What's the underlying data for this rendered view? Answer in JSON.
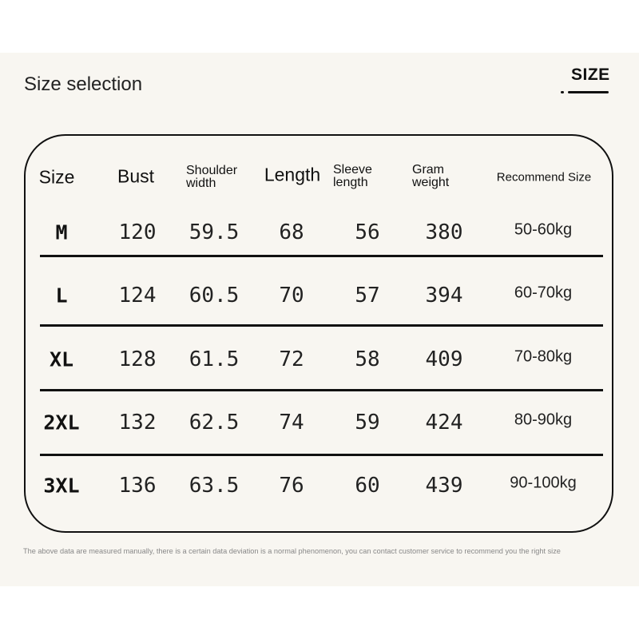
{
  "title": "Size selection",
  "logo": "SIZE",
  "headers": [
    "Size",
    "Bust",
    "Shoulder width",
    "Length",
    "Sleeve length",
    "Gram weight",
    "Recommend Size"
  ],
  "rows": [
    {
      "size": "M",
      "bust": "120",
      "shoulder": "59.5",
      "length": "68",
      "sleeve": "56",
      "weight": "380",
      "recommend": "50-60kg"
    },
    {
      "size": "L",
      "bust": "124",
      "shoulder": "60.5",
      "length": "70",
      "sleeve": "57",
      "weight": "394",
      "recommend": "60-70kg"
    },
    {
      "size": "XL",
      "bust": "128",
      "shoulder": "61.5",
      "length": "72",
      "sleeve": "58",
      "weight": "409",
      "recommend": "70-80kg"
    },
    {
      "size": "2XL",
      "bust": "132",
      "shoulder": "62.5",
      "length": "74",
      "sleeve": "59",
      "weight": "424",
      "recommend": "80-90kg"
    },
    {
      "size": "3XL",
      "bust": "136",
      "shoulder": "63.5",
      "length": "76",
      "sleeve": "60",
      "weight": "439",
      "recommend": "90-100kg"
    }
  ],
  "note": "The above data are measured manually, there is a certain data deviation is a normal phenomenon, you can contact customer service to recommend you the right size"
}
